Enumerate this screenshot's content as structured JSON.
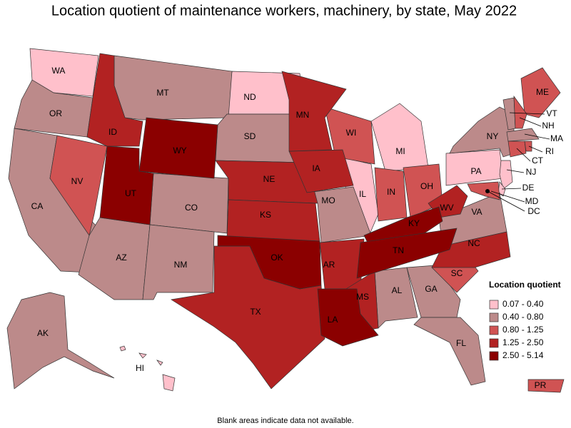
{
  "title": "Location quotient of maintenance workers, machinery, by state, May 2022",
  "legend": {
    "title": "Location quotient",
    "bins": [
      {
        "label": "0.07 - 0.40",
        "color": "#ffc0cb",
        "states": [
          "WA",
          "ND",
          "MI",
          "IL",
          "PA",
          "NJ",
          "DE",
          "HI"
        ]
      },
      {
        "label": "0.40 - 0.80",
        "color": "#bc8a8a",
        "states": [
          "OR",
          "CA",
          "MT",
          "SD",
          "CO",
          "AZ",
          "NM",
          "MO",
          "AL",
          "GA",
          "FL",
          "VA",
          "NY",
          "VT",
          "MA",
          "AK"
        ]
      },
      {
        "label": "0.80 - 1.25",
        "color": "#d05353",
        "states": [
          "NV",
          "WI",
          "IN",
          "OH",
          "SC",
          "ME",
          "NH",
          "CT",
          "RI",
          "MD",
          "PR"
        ]
      },
      {
        "label": "1.25 - 2.50",
        "color": "#b22222",
        "states": [
          "ID",
          "NE",
          "IA",
          "KS",
          "MN",
          "TX",
          "AR",
          "MS",
          "NC",
          "WV"
        ]
      },
      {
        "label": "2.50 - 5.14",
        "color": "#8b0000",
        "states": [
          "WY",
          "UT",
          "OK",
          "LA",
          "KY",
          "TN"
        ]
      }
    ]
  },
  "markers": [
    "DC"
  ],
  "footnote": "Blank areas indicate data not available."
}
